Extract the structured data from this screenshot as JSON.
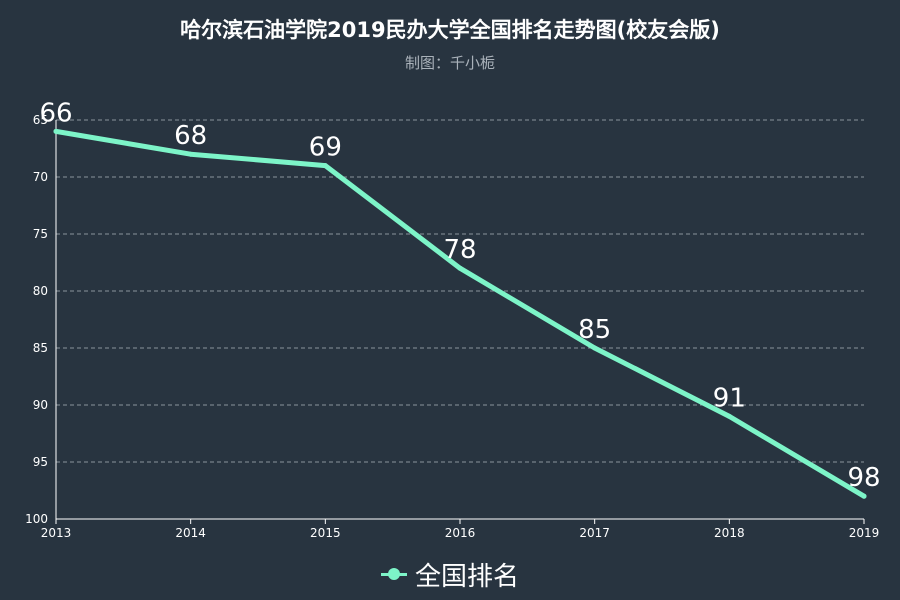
{
  "title": "哈尔滨石油学院2019民办大学全国排名走势图(校友会版)",
  "subtitle": "制图：千小栀",
  "colors": {
    "background": "#283440",
    "series": "#7df4c8",
    "grid": "#8a939c",
    "axis": "#ffffff"
  },
  "chart_data": {
    "type": "line",
    "title": "哈尔滨石油学院2019民办大学全国排名走势图(校友会版)",
    "subtitle": "制图：千小栀",
    "categories": [
      "2013",
      "2014",
      "2015",
      "2016",
      "2017",
      "2018",
      "2019"
    ],
    "series": [
      {
        "name": "全国排名",
        "values": [
          66,
          68,
          69,
          78,
          85,
          91,
          98
        ]
      }
    ],
    "y_axis": {
      "inverted": true,
      "ylim": [
        65,
        100
      ],
      "ticks": [
        65,
        70,
        75,
        80,
        85,
        90,
        95,
        100
      ]
    },
    "grid": "horizontal dashed",
    "legend_position": "bottom-center",
    "data_labels": true
  }
}
